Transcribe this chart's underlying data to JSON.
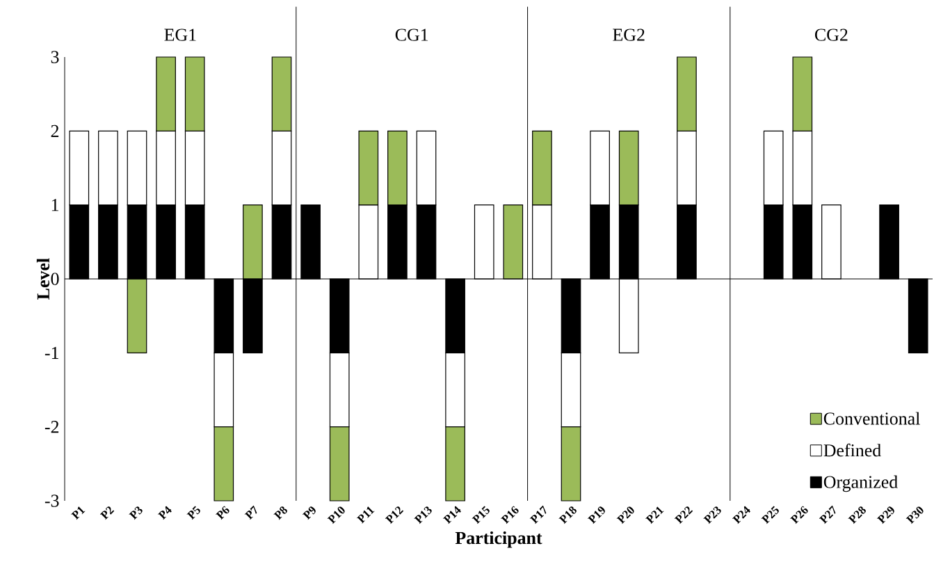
{
  "chart_data": {
    "type": "bar",
    "stacked": true,
    "xlabel": "Participant",
    "ylabel": "Level",
    "categories": [
      "P1",
      "P2",
      "P3",
      "P4",
      "P5",
      "P6",
      "P7",
      "P8",
      "P9",
      "P10",
      "P11",
      "P12",
      "P13",
      "P14",
      "P15",
      "P16",
      "P17",
      "P18",
      "P19",
      "P20",
      "P21",
      "P22",
      "P23",
      "P24",
      "P25",
      "P26",
      "P27",
      "P28",
      "P29",
      "P30"
    ],
    "series": [
      {
        "name": "Organized",
        "color": "#000000",
        "values": [
          1,
          1,
          1,
          1,
          1,
          -1,
          -1,
          1,
          1,
          -1,
          0,
          1,
          1,
          -1,
          0,
          0,
          0,
          -1,
          1,
          1,
          0,
          1,
          0,
          0,
          1,
          1,
          0,
          0,
          1,
          -1
        ]
      },
      {
        "name": "Defined",
        "color": "#ffffff",
        "values": [
          1,
          1,
          1,
          1,
          1,
          -1,
          0,
          1,
          0,
          -1,
          1,
          0,
          1,
          -1,
          1,
          0,
          1,
          -1,
          1,
          -1,
          0,
          1,
          0,
          0,
          1,
          1,
          1,
          0,
          0,
          0
        ]
      },
      {
        "name": "Conventional",
        "color": "#9bbb59",
        "values": [
          0,
          0,
          -1,
          1,
          1,
          -1,
          1,
          1,
          0,
          -1,
          1,
          1,
          0,
          -1,
          0,
          1,
          1,
          -1,
          0,
          1,
          0,
          1,
          0,
          0,
          0,
          1,
          0,
          0,
          0,
          0
        ]
      }
    ],
    "ylim": [
      -3,
      3
    ],
    "yticks": [
      -3,
      -2,
      -1,
      0,
      1,
      2,
      3
    ],
    "annotations": [
      "EG1",
      "CG1",
      "EG2",
      "CG2"
    ],
    "legend": "bottom right"
  }
}
